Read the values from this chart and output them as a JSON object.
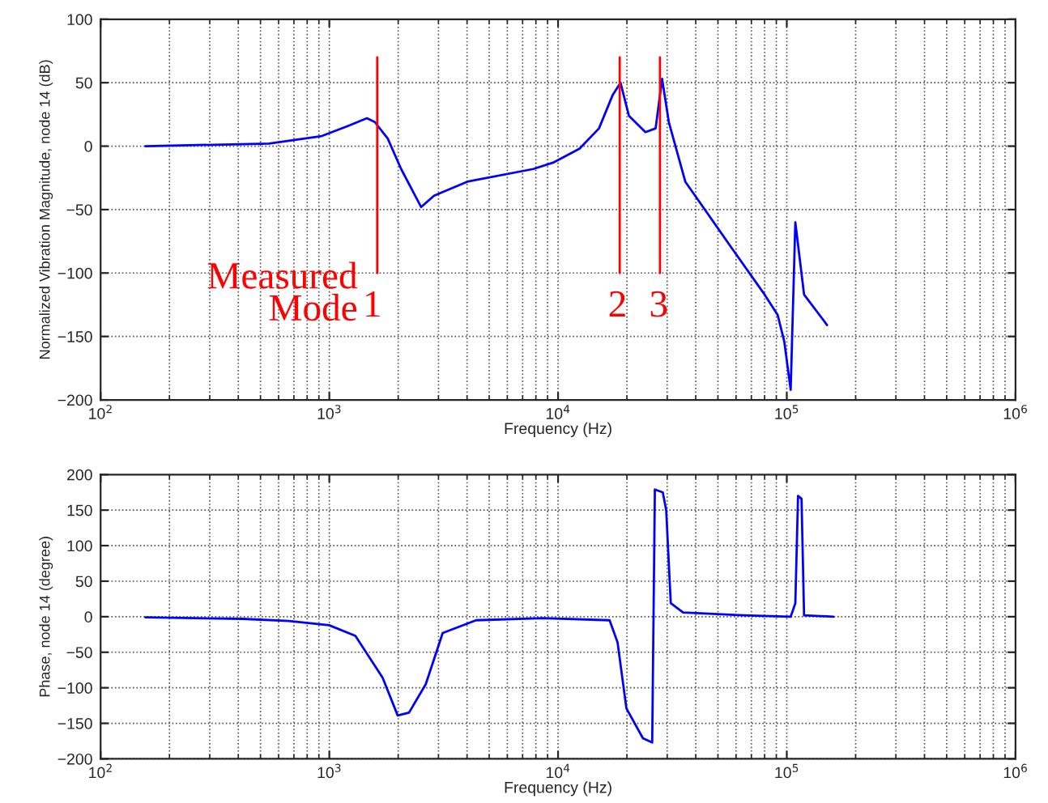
{
  "chart_data": [
    {
      "type": "line",
      "xlabel": "Frequency (Hz)",
      "ylabel": "Normalized Vibration Magnitude, node 14 (dB)",
      "log": "x",
      "grid": true,
      "xlim": [
        100,
        1000000
      ],
      "ylim": [
        -200,
        100
      ],
      "xticks": [
        {
          "value": 100,
          "label": "10$^{2}$"
        },
        {
          "value": 1000,
          "label": "10$^{3}$"
        },
        {
          "value": 10000,
          "label": "10$^{4}$"
        },
        {
          "value": 100000,
          "label": "10$^{5}$"
        },
        {
          "value": 1000000,
          "label": "10$^{6}$"
        }
      ],
      "yticks": [
        -200,
        -150,
        -100,
        -50,
        0,
        50,
        100
      ],
      "series": [
        {
          "color": "#0000ff",
          "x": [
            157,
            545,
            927,
            1210,
            1460,
            1580,
            1800,
            2060,
            2520,
            2870,
            4010,
            7800,
            9510,
            12400,
            15100,
            17300,
            18750,
            20400,
            24100,
            26700,
            28500,
            30500,
            36000,
            57300,
            80000,
            91200,
            97500,
            104000,
            109000,
            119000,
            150000
          ],
          "values": [
            0,
            2,
            8,
            16,
            22,
            19,
            6,
            -18,
            -48,
            -39,
            -28,
            -18,
            -13,
            -2,
            14,
            40,
            50,
            24,
            11,
            14,
            53,
            19,
            -28,
            -80,
            -117,
            -133,
            -154,
            -192,
            -60,
            -117,
            -141
          ]
        },
        {
          "color": "#ff0000",
          "x": [
            1620,
            1620
          ],
          "values": [
            -100,
            70
          ]
        },
        {
          "color": "#ff0000",
          "x": [
            18600,
            18600
          ],
          "values": [
            -100,
            70
          ]
        },
        {
          "color": "#ff0000",
          "x": [
            27900,
            27900
          ],
          "values": [
            -100,
            70
          ]
        }
      ],
      "annotations": [
        "Measured\nMode",
        "1",
        "2",
        "3"
      ]
    },
    {
      "type": "line",
      "xlabel": "Frequency (Hz)",
      "ylabel": "Phase, node 14 (degree)",
      "log": "x",
      "grid": true,
      "xlim": [
        100,
        1000000
      ],
      "ylim": [
        -200,
        200
      ],
      "xticks": [
        {
          "value": 100,
          "label": "10$^{2}$"
        },
        {
          "value": 1000,
          "label": "10$^{3}$"
        },
        {
          "value": 10000,
          "label": "10$^{4}$"
        },
        {
          "value": 100000,
          "label": "10$^{5}$"
        },
        {
          "value": 1000000,
          "label": "10$^{6}$"
        }
      ],
      "yticks": [
        -200,
        -150,
        -100,
        -50,
        0,
        50,
        100,
        150,
        200
      ],
      "series": [
        {
          "color": "#0000ff",
          "x": [
            157,
            416,
            665,
            998,
            1300,
            1710,
            1990,
            2230,
            2640,
            3130,
            4380,
            8570,
            16800,
            18200,
            19900,
            23500,
            25800,
            26500,
            28700,
            29700,
            31100,
            35200,
            64400,
            104000,
            109000,
            112000,
            116000,
            119000,
            160000
          ],
          "values": [
            -1,
            -3,
            -6,
            -12,
            -27,
            -86,
            -139,
            -135,
            -95,
            -23,
            -5,
            -2,
            -5,
            -36,
            -129,
            -171,
            -177,
            179,
            175,
            150,
            19,
            6,
            2,
            0,
            19,
            170,
            166,
            2,
            0
          ]
        }
      ]
    }
  ]
}
